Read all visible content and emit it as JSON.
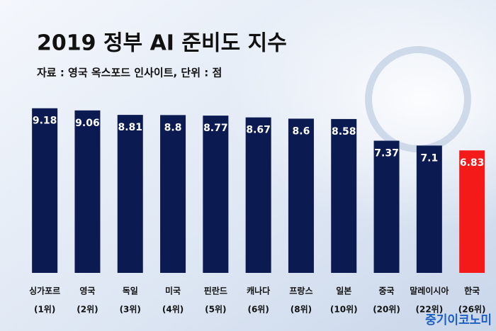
{
  "chart_data": {
    "type": "bar",
    "title": "2019 정부 AI 준비도 지수",
    "subtitle": "자료 : 영국 옥스포드 인사이트, 단위 : 점",
    "categories": [
      "싱가포르",
      "영국",
      "독일",
      "미국",
      "핀란드",
      "캐나다",
      "프랑스",
      "일본",
      "중국",
      "말레이시아",
      "한국"
    ],
    "ranks": [
      "(1위)",
      "(2위)",
      "(3위)",
      "(4위)",
      "(5위)",
      "(6위)",
      "(8위)",
      "(10위)",
      "(20위)",
      "(22위)",
      "(26위)"
    ],
    "values": [
      9.18,
      9.06,
      8.81,
      8.8,
      8.77,
      8.67,
      8.6,
      8.58,
      7.37,
      7.1,
      6.83
    ],
    "colors": [
      "#0c1a52",
      "#0c1a52",
      "#0c1a52",
      "#0c1a52",
      "#0c1a52",
      "#0c1a52",
      "#0c1a52",
      "#0c1a52",
      "#0c1a52",
      "#0c1a52",
      "#f51a1a"
    ],
    "ylim": [
      0,
      10
    ],
    "source_logo": "중기이코노미"
  }
}
